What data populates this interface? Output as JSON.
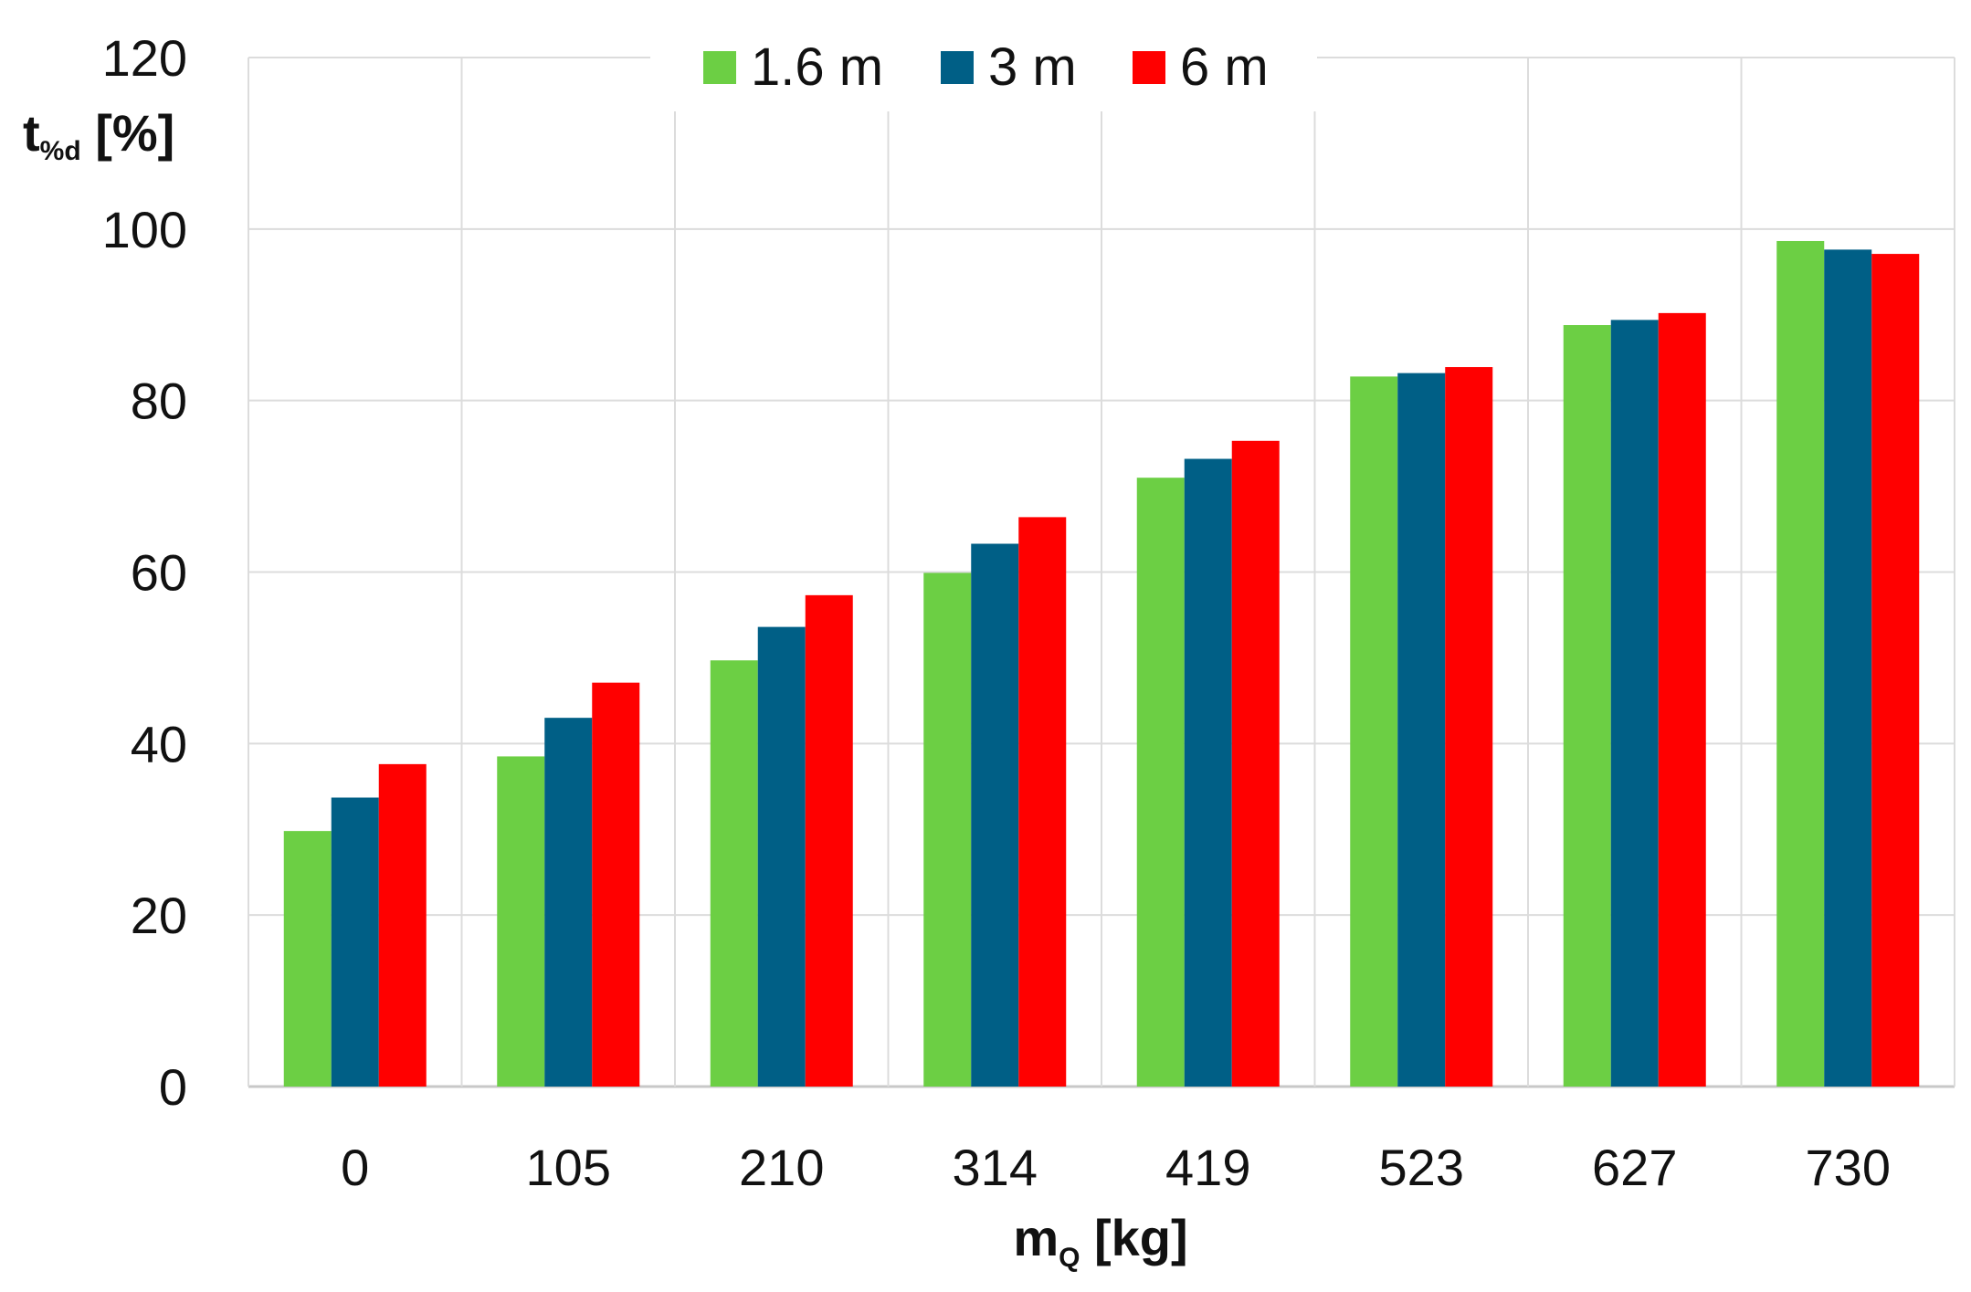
{
  "chart_data": {
    "type": "bar",
    "categories": [
      "0",
      "105",
      "210",
      "314",
      "419",
      "523",
      "627",
      "730"
    ],
    "series": [
      {
        "name": "1.6 m",
        "color": "#6ccf44",
        "values": [
          29.8,
          38.5,
          49.7,
          59.9,
          71.0,
          82.8,
          88.8,
          98.6
        ]
      },
      {
        "name": "3 m",
        "color": "#005f86",
        "values": [
          33.7,
          43.0,
          53.6,
          63.3,
          73.2,
          83.2,
          89.4,
          97.6
        ]
      },
      {
        "name": "6 m",
        "color": "#ff0000",
        "values": [
          37.6,
          47.1,
          57.3,
          66.4,
          75.3,
          83.9,
          90.2,
          97.1
        ]
      }
    ],
    "ylim": [
      0,
      120
    ],
    "yticks": [
      "0",
      "20",
      "40",
      "60",
      "80",
      "100",
      "120"
    ],
    "ylabel": {
      "main": "t",
      "sub": "%d",
      "unit": " [%]"
    },
    "xlabel": {
      "main": "m",
      "sub": "Q",
      "unit": " [kg]"
    },
    "grid": true,
    "legend_position": "top-center"
  }
}
